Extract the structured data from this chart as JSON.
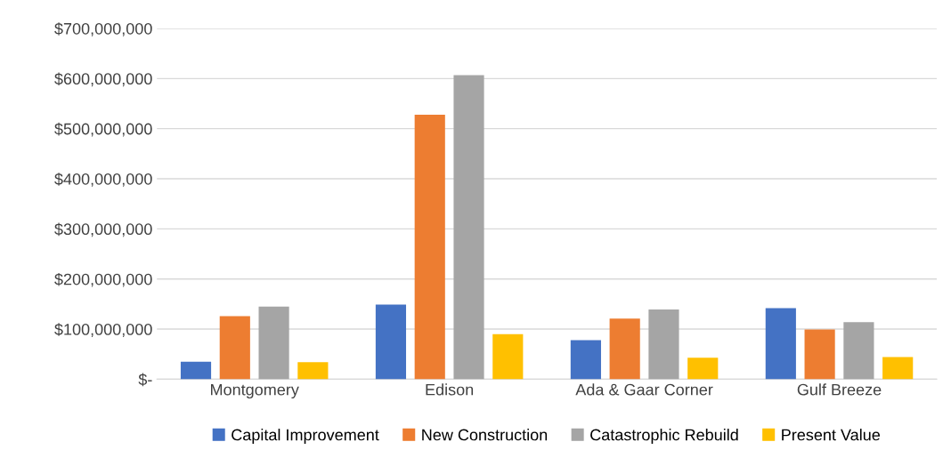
{
  "chart_data": {
    "type": "bar",
    "categories": [
      "Montgomery",
      "Edison",
      "Ada & Gaar Corner",
      "Gulf Breeze"
    ],
    "series": [
      {
        "name": "Capital Improvement",
        "color": "#4472c4",
        "values": [
          35000000,
          149000000,
          78000000,
          142000000
        ]
      },
      {
        "name": "New Construction",
        "color": "#ed7d31",
        "values": [
          126000000,
          528000000,
          121000000,
          99000000
        ]
      },
      {
        "name": "Catastrophic Rebuild",
        "color": "#a5a5a5",
        "values": [
          145000000,
          607000000,
          139000000,
          114000000
        ]
      },
      {
        "name": "Present Value",
        "color": "#ffc000",
        "values": [
          34000000,
          90000000,
          43000000,
          44000000
        ]
      }
    ],
    "ylim": [
      0,
      700000000
    ],
    "yticks": [
      {
        "value": 0,
        "label": "$-"
      },
      {
        "value": 100000000,
        "label": "$100,000,000"
      },
      {
        "value": 200000000,
        "label": "$200,000,000"
      },
      {
        "value": 300000000,
        "label": "$300,000,000"
      },
      {
        "value": 400000000,
        "label": "$400,000,000"
      },
      {
        "value": 500000000,
        "label": "$500,000,000"
      },
      {
        "value": 600000000,
        "label": "$600,000,000"
      },
      {
        "value": 700000000,
        "label": "$700,000,000"
      }
    ],
    "grid": "y",
    "legend": "bottom"
  }
}
